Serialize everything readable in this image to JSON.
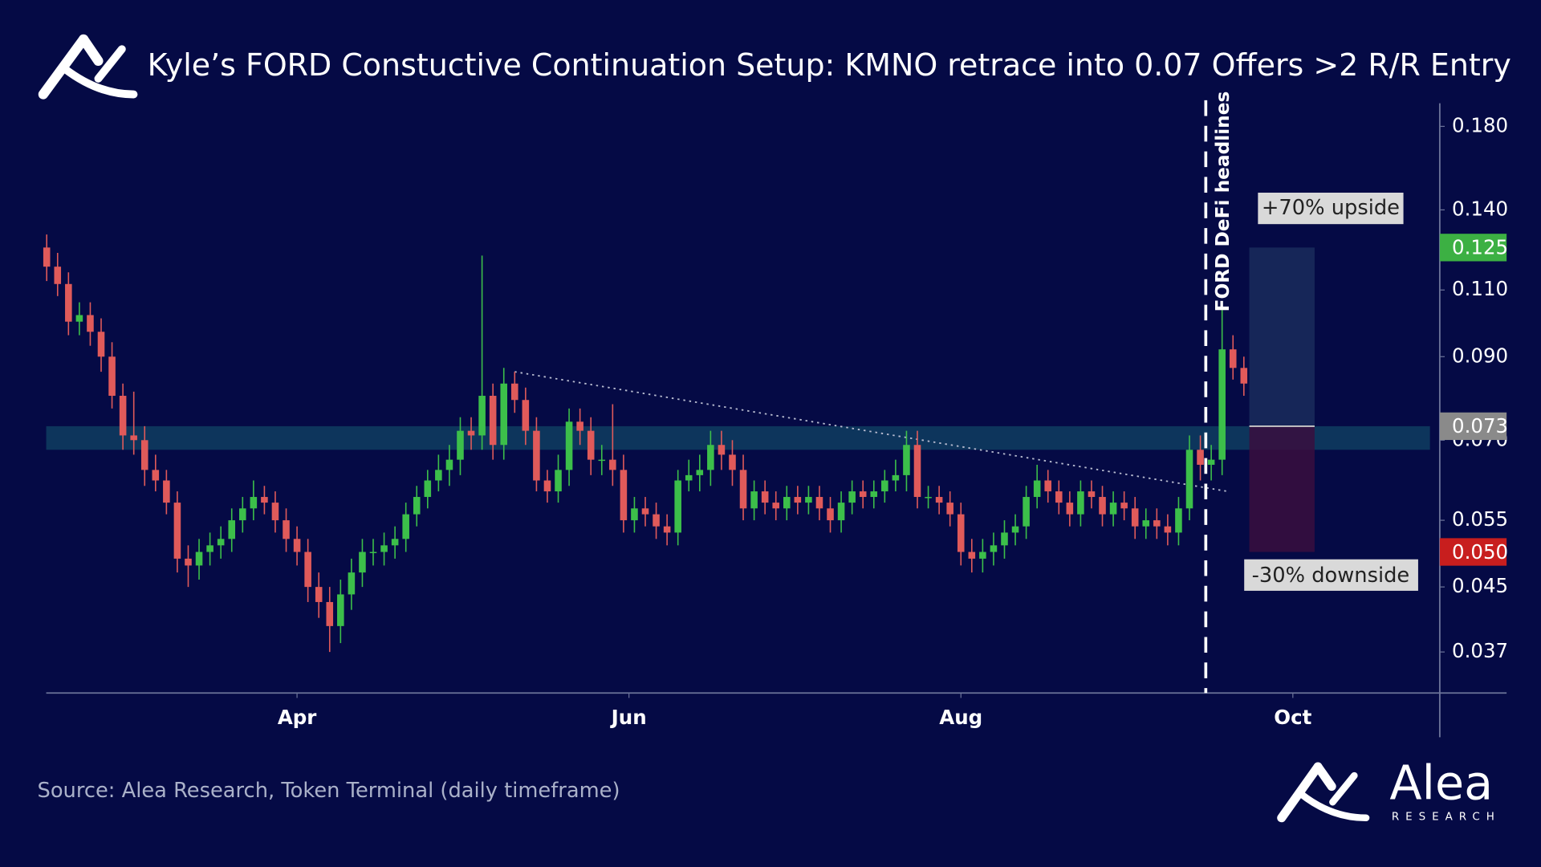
{
  "chart_data": {
    "type": "candlestick",
    "title": "Kyle’s FORD Constuctive Continuation Setup: KMNO retrace into 0.07 Offers >2 R/R Entry",
    "source": "Source: Alea Research, Token Terminal (daily timeframe)",
    "brand": "Alea",
    "brand_sub": "RESEARCH",
    "log": true,
    "up_color": "#3cbf4a",
    "down_color": "#e05a5a",
    "xlim": [
      45,
      302
    ],
    "xticks": [
      {
        "value": 92,
        "label": "Apr"
      },
      {
        "value": 153,
        "label": "Jun"
      },
      {
        "value": 214,
        "label": "Aug"
      },
      {
        "value": 275,
        "label": "Oct"
      }
    ],
    "ylim": [
      0.0327,
      0.193
    ],
    "yticks": [
      0.037,
      0.045,
      0.055,
      {
        "value": 0.07,
        "label": "0.070"
      },
      {
        "value": 0.09,
        "label": "0.090"
      },
      {
        "value": 0.11,
        "label": "0.110"
      },
      {
        "value": 0.14,
        "label": "0.140"
      },
      {
        "value": 0.18,
        "label": "0.180"
      }
    ],
    "x": [
      46,
      48,
      50,
      52,
      54,
      56,
      58,
      60,
      62,
      64,
      66,
      68,
      70,
      72,
      74,
      76,
      78,
      80,
      82,
      84,
      86,
      88,
      90,
      92,
      94,
      96,
      98,
      100,
      102,
      104,
      106,
      108,
      110,
      112,
      114,
      116,
      118,
      120,
      122,
      124,
      126,
      128,
      130,
      132,
      134,
      136,
      138,
      140,
      142,
      144,
      146,
      148,
      150,
      152,
      154,
      156,
      158,
      160,
      162,
      164,
      166,
      168,
      170,
      172,
      174,
      176,
      178,
      180,
      182,
      184,
      186,
      188,
      190,
      192,
      194,
      196,
      198,
      200,
      202,
      204,
      206,
      208,
      210,
      212,
      214,
      216,
      218,
      220,
      222,
      224,
      226,
      228,
      230,
      232,
      234,
      236,
      238,
      240,
      242,
      244,
      246,
      248,
      250,
      252,
      254,
      256,
      258,
      260,
      262,
      264,
      266
    ],
    "open": [
      0.125,
      0.118,
      0.112,
      0.1,
      0.102,
      0.097,
      0.09,
      0.08,
      0.071,
      0.07,
      0.064,
      0.062,
      0.058,
      0.049,
      0.048,
      0.05,
      0.051,
      0.052,
      0.055,
      0.057,
      0.059,
      0.058,
      0.055,
      0.052,
      0.05,
      0.045,
      0.043,
      0.04,
      0.044,
      0.047,
      0.05,
      0.05,
      0.051,
      0.052,
      0.056,
      0.059,
      0.062,
      0.064,
      0.066,
      0.072,
      0.071,
      0.08,
      0.069,
      0.083,
      0.079,
      0.072,
      0.062,
      0.06,
      0.064,
      0.074,
      0.072,
      0.066,
      0.066,
      0.064,
      0.055,
      0.057,
      0.056,
      0.054,
      0.053,
      0.062,
      0.063,
      0.064,
      0.069,
      0.067,
      0.064,
      0.057,
      0.06,
      0.058,
      0.057,
      0.059,
      0.058,
      0.059,
      0.057,
      0.055,
      0.058,
      0.06,
      0.059,
      0.06,
      0.062,
      0.063,
      0.069,
      0.059,
      0.059,
      0.058,
      0.056,
      0.05,
      0.049,
      0.05,
      0.051,
      0.053,
      0.054,
      0.059,
      0.062,
      0.06,
      0.058,
      0.056,
      0.06,
      0.059,
      0.056,
      0.058,
      0.057,
      0.054,
      0.055,
      0.054,
      0.053,
      0.057,
      0.068,
      0.065,
      0.066,
      0.092,
      0.087
    ],
    "high": [
      0.13,
      0.123,
      0.116,
      0.106,
      0.106,
      0.101,
      0.094,
      0.083,
      0.081,
      0.073,
      0.067,
      0.064,
      0.06,
      0.051,
      0.052,
      0.053,
      0.054,
      0.057,
      0.059,
      0.062,
      0.061,
      0.06,
      0.057,
      0.054,
      0.052,
      0.047,
      0.045,
      0.046,
      0.049,
      0.052,
      0.052,
      0.053,
      0.054,
      0.058,
      0.061,
      0.064,
      0.067,
      0.069,
      0.075,
      0.075,
      0.122,
      0.083,
      0.087,
      0.086,
      0.082,
      0.075,
      0.064,
      0.067,
      0.077,
      0.077,
      0.075,
      0.069,
      0.078,
      0.067,
      0.059,
      0.059,
      0.058,
      0.056,
      0.064,
      0.066,
      0.067,
      0.072,
      0.072,
      0.07,
      0.067,
      0.062,
      0.062,
      0.06,
      0.061,
      0.061,
      0.061,
      0.061,
      0.059,
      0.06,
      0.062,
      0.062,
      0.062,
      0.064,
      0.066,
      0.072,
      0.072,
      0.061,
      0.061,
      0.06,
      0.058,
      0.052,
      0.052,
      0.053,
      0.055,
      0.056,
      0.061,
      0.065,
      0.064,
      0.062,
      0.06,
      0.062,
      0.062,
      0.061,
      0.06,
      0.06,
      0.059,
      0.057,
      0.057,
      0.056,
      0.059,
      0.071,
      0.071,
      0.069,
      0.105,
      0.096,
      0.09
    ],
    "low": [
      0.113,
      0.108,
      0.096,
      0.096,
      0.093,
      0.086,
      0.077,
      0.068,
      0.067,
      0.061,
      0.06,
      0.056,
      0.047,
      0.045,
      0.046,
      0.048,
      0.049,
      0.05,
      0.053,
      0.055,
      0.056,
      0.053,
      0.05,
      0.048,
      0.043,
      0.041,
      0.037,
      0.038,
      0.042,
      0.045,
      0.048,
      0.048,
      0.049,
      0.05,
      0.054,
      0.057,
      0.06,
      0.061,
      0.063,
      0.068,
      0.068,
      0.066,
      0.066,
      0.076,
      0.069,
      0.06,
      0.058,
      0.058,
      0.061,
      0.069,
      0.063,
      0.063,
      0.061,
      0.053,
      0.053,
      0.054,
      0.052,
      0.051,
      0.051,
      0.06,
      0.06,
      0.061,
      0.064,
      0.061,
      0.055,
      0.055,
      0.056,
      0.055,
      0.055,
      0.056,
      0.056,
      0.055,
      0.053,
      0.053,
      0.056,
      0.057,
      0.057,
      0.058,
      0.06,
      0.06,
      0.057,
      0.057,
      0.056,
      0.054,
      0.048,
      0.047,
      0.047,
      0.048,
      0.049,
      0.051,
      0.052,
      0.057,
      0.058,
      0.056,
      0.054,
      0.054,
      0.057,
      0.054,
      0.054,
      0.055,
      0.052,
      0.052,
      0.052,
      0.051,
      0.051,
      0.055,
      0.062,
      0.062,
      0.063,
      0.084,
      0.08
    ],
    "close": [
      0.118,
      0.112,
      0.1,
      0.102,
      0.097,
      0.09,
      0.08,
      0.071,
      0.07,
      0.064,
      0.062,
      0.058,
      0.049,
      0.048,
      0.05,
      0.051,
      0.052,
      0.055,
      0.057,
      0.059,
      0.058,
      0.055,
      0.052,
      0.05,
      0.045,
      0.043,
      0.04,
      0.044,
      0.047,
      0.05,
      0.05,
      0.051,
      0.052,
      0.056,
      0.059,
      0.062,
      0.064,
      0.066,
      0.072,
      0.071,
      0.08,
      0.069,
      0.083,
      0.079,
      0.072,
      0.062,
      0.06,
      0.064,
      0.074,
      0.072,
      0.066,
      0.066,
      0.064,
      0.055,
      0.057,
      0.056,
      0.054,
      0.053,
      0.062,
      0.063,
      0.064,
      0.069,
      0.067,
      0.064,
      0.057,
      0.06,
      0.058,
      0.057,
      0.059,
      0.058,
      0.059,
      0.057,
      0.055,
      0.058,
      0.06,
      0.059,
      0.06,
      0.062,
      0.063,
      0.069,
      0.059,
      0.059,
      0.058,
      0.056,
      0.05,
      0.049,
      0.05,
      0.051,
      0.053,
      0.054,
      0.059,
      0.062,
      0.06,
      0.058,
      0.056,
      0.06,
      0.059,
      0.056,
      0.058,
      0.057,
      0.054,
      0.055,
      0.054,
      0.053,
      0.057,
      0.068,
      0.065,
      0.066,
      0.092,
      0.087,
      0.083
    ],
    "zone": {
      "ymin": 0.068,
      "ymax": 0.073,
      "color": "#0e3a5e"
    },
    "trendline": {
      "x": [
        132,
        263
      ],
      "y": [
        0.086,
        0.06
      ]
    },
    "event": {
      "x": 259,
      "label": "FORD DeFi headlines"
    },
    "position": {
      "x": [
        267,
        279
      ],
      "target": 0.125,
      "entry": 0.073,
      "stop": 0.05,
      "stop_label": "0.050",
      "target_color": "#3cb043",
      "entry_color": "#8a8a8a",
      "stop_color": "#c81e1e",
      "upside_label": "+70% upside",
      "downside_label": "-30% downside"
    }
  }
}
